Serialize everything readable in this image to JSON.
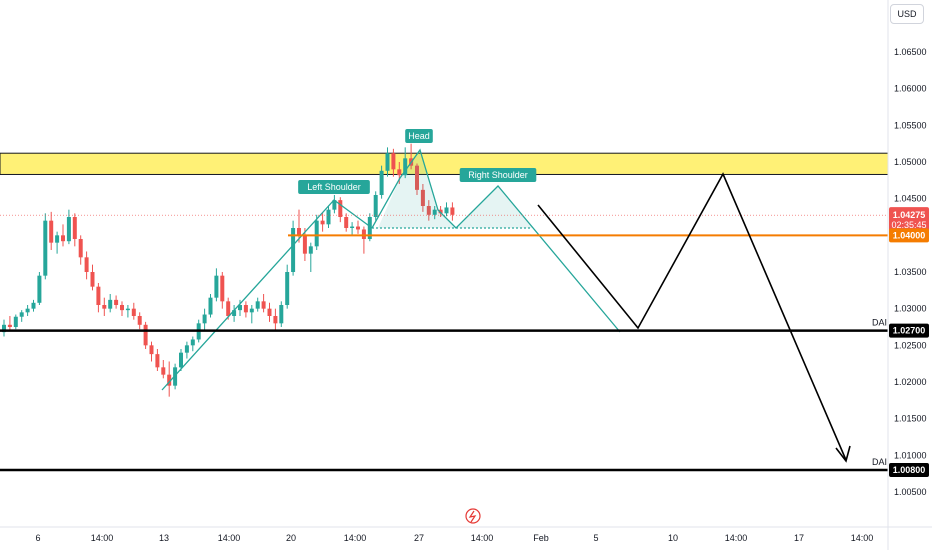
{
  "currency_button": "USD",
  "colors": {
    "up": "#26a69a",
    "down": "#ef5350",
    "zone_fill": "#fff176",
    "orange_level": "#f57c00",
    "pattern": "#26a69a",
    "price_badge": "#ef5350"
  },
  "chart_data": {
    "type": "candlestick",
    "title": "",
    "ylim": [
      1.003,
      1.07
    ],
    "y_ticks": [
      "1.00500",
      "1.01000",
      "1.01500",
      "1.02000",
      "1.02500",
      "1.03000",
      "1.03500",
      "1.04000",
      "1.04500",
      "1.05000",
      "1.05500",
      "1.06000",
      "1.06500"
    ],
    "x_ticks": [
      "6",
      "14:00",
      "13",
      "14:00",
      "20",
      "14:00",
      "27",
      "14:00",
      "Feb",
      "5",
      "10",
      "14:00",
      "17",
      "14:00"
    ],
    "current_price": {
      "label": "1.04275",
      "countdown": "02:35:45",
      "value": 1.04275
    },
    "levels": [
      {
        "name": "supply-zone",
        "from": 1.0483,
        "to": 1.0512
      },
      {
        "name": "orange-level",
        "value": 1.04,
        "label": "1.04000"
      },
      {
        "name": "DAI",
        "value": 1.027,
        "label": "1.02700",
        "text": "DAI"
      },
      {
        "name": "DAI",
        "value": 1.008,
        "label": "1.00800",
        "text": "DAI"
      }
    ],
    "pattern_labels": [
      "Left Shoulder",
      "Head",
      "Right Shoulder"
    ],
    "candles": [
      [
        1.0268,
        1.0285,
        1.0262,
        1.0278
      ],
      [
        1.0278,
        1.029,
        1.027,
        1.0275
      ],
      [
        1.0275,
        1.0292,
        1.0272,
        1.0289
      ],
      [
        1.0289,
        1.0298,
        1.0282,
        1.0295
      ],
      [
        1.0295,
        1.0305,
        1.029,
        1.03
      ],
      [
        1.03,
        1.0312,
        1.0296,
        1.0308
      ],
      [
        1.0308,
        1.035,
        1.0305,
        1.0345
      ],
      [
        1.0345,
        1.043,
        1.034,
        1.042
      ],
      [
        1.042,
        1.0432,
        1.038,
        1.039
      ],
      [
        1.039,
        1.0405,
        1.0375,
        1.04
      ],
      [
        1.04,
        1.0415,
        1.0385,
        1.0392
      ],
      [
        1.0392,
        1.0435,
        1.0388,
        1.0425
      ],
      [
        1.0425,
        1.043,
        1.0385,
        1.0395
      ],
      [
        1.0395,
        1.04,
        1.036,
        1.037
      ],
      [
        1.037,
        1.0378,
        1.034,
        1.035
      ],
      [
        1.035,
        1.036,
        1.0325,
        1.033
      ],
      [
        1.033,
        1.0335,
        1.0295,
        1.0305
      ],
      [
        1.0305,
        1.0315,
        1.029,
        1.03
      ],
      [
        1.03,
        1.032,
        1.0295,
        1.0312
      ],
      [
        1.0312,
        1.0318,
        1.03,
        1.0305
      ],
      [
        1.0305,
        1.031,
        1.029,
        1.0298
      ],
      [
        1.0298,
        1.0305,
        1.0288,
        1.03
      ],
      [
        1.03,
        1.0308,
        1.0285,
        1.029
      ],
      [
        1.029,
        1.0295,
        1.0272,
        1.0278
      ],
      [
        1.0278,
        1.0282,
        1.0245,
        1.025
      ],
      [
        1.025,
        1.0255,
        1.0228,
        1.0238
      ],
      [
        1.0238,
        1.0245,
        1.0215,
        1.022
      ],
      [
        1.022,
        1.023,
        1.0205,
        1.021
      ],
      [
        1.021,
        1.0228,
        1.018,
        1.0195
      ],
      [
        1.0195,
        1.0225,
        1.019,
        1.022
      ],
      [
        1.022,
        1.0245,
        1.0215,
        1.024
      ],
      [
        1.024,
        1.0255,
        1.0232,
        1.025
      ],
      [
        1.025,
        1.0262,
        1.0242,
        1.0258
      ],
      [
        1.0258,
        1.0285,
        1.0254,
        1.028
      ],
      [
        1.028,
        1.03,
        1.027,
        1.0292
      ],
      [
        1.0292,
        1.032,
        1.0288,
        1.0315
      ],
      [
        1.0315,
        1.0355,
        1.031,
        1.0345
      ],
      [
        1.0345,
        1.035,
        1.03,
        1.031
      ],
      [
        1.031,
        1.0315,
        1.0285,
        1.029
      ],
      [
        1.029,
        1.0305,
        1.0282,
        1.0298
      ],
      [
        1.0298,
        1.0312,
        1.029,
        1.0305
      ],
      [
        1.0305,
        1.031,
        1.0288,
        1.0295
      ],
      [
        1.0295,
        1.0305,
        1.028,
        1.03
      ],
      [
        1.03,
        1.0315,
        1.0296,
        1.031
      ],
      [
        1.031,
        1.032,
        1.0295,
        1.03
      ],
      [
        1.03,
        1.0308,
        1.0282,
        1.029
      ],
      [
        1.029,
        1.03,
        1.027,
        1.028
      ],
      [
        1.028,
        1.031,
        1.0275,
        1.0305
      ],
      [
        1.0305,
        1.036,
        1.03,
        1.035
      ],
      [
        1.035,
        1.042,
        1.0345,
        1.041
      ],
      [
        1.041,
        1.0435,
        1.039,
        1.04
      ],
      [
        1.04,
        1.041,
        1.0365,
        1.0375
      ],
      [
        1.0375,
        1.039,
        1.035,
        1.0385
      ],
      [
        1.0385,
        1.0428,
        1.038,
        1.042
      ],
      [
        1.042,
        1.043,
        1.0405,
        1.0415
      ],
      [
        1.0415,
        1.044,
        1.041,
        1.0435
      ],
      [
        1.0435,
        1.0455,
        1.043,
        1.0448
      ],
      [
        1.0448,
        1.0452,
        1.0418,
        1.0425
      ],
      [
        1.0425,
        1.043,
        1.0405,
        1.041
      ],
      [
        1.041,
        1.0418,
        1.04,
        1.0412
      ],
      [
        1.0412,
        1.042,
        1.0402,
        1.0408
      ],
      [
        1.0408,
        1.0412,
        1.0375,
        1.0395
      ],
      [
        1.0395,
        1.043,
        1.0392,
        1.0425
      ],
      [
        1.0425,
        1.046,
        1.042,
        1.0455
      ],
      [
        1.0455,
        1.0495,
        1.045,
        1.0488
      ],
      [
        1.0488,
        1.052,
        1.048,
        1.0512
      ],
      [
        1.0512,
        1.0518,
        1.048,
        1.049
      ],
      [
        1.049,
        1.05,
        1.047,
        1.0482
      ],
      [
        1.0482,
        1.052,
        1.0478,
        1.0505
      ],
      [
        1.0505,
        1.0525,
        1.049,
        1.0495
      ],
      [
        1.0495,
        1.0498,
        1.0455,
        1.0462
      ],
      [
        1.0462,
        1.047,
        1.0432,
        1.044
      ],
      [
        1.044,
        1.0448,
        1.042,
        1.0428
      ],
      [
        1.0428,
        1.044,
        1.0422,
        1.0435
      ],
      [
        1.0435,
        1.044,
        1.0425,
        1.043
      ],
      [
        1.043,
        1.0445,
        1.0426,
        1.0438
      ],
      [
        1.0438,
        1.0445,
        1.042,
        1.0428
      ]
    ]
  }
}
